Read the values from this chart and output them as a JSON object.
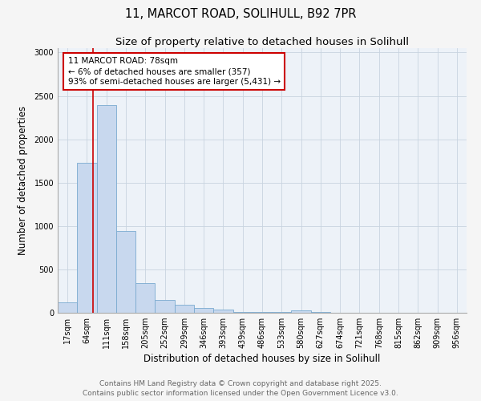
{
  "title_line1": "11, MARCOT ROAD, SOLIHULL, B92 7PR",
  "title_line2": "Size of property relative to detached houses in Solihull",
  "xlabel": "Distribution of detached houses by size in Solihull",
  "ylabel": "Number of detached properties",
  "categories": [
    "17sqm",
    "64sqm",
    "111sqm",
    "158sqm",
    "205sqm",
    "252sqm",
    "299sqm",
    "346sqm",
    "393sqm",
    "439sqm",
    "486sqm",
    "533sqm",
    "580sqm",
    "627sqm",
    "674sqm",
    "721sqm",
    "768sqm",
    "815sqm",
    "862sqm",
    "909sqm",
    "956sqm"
  ],
  "values": [
    120,
    1730,
    2390,
    940,
    345,
    150,
    90,
    55,
    35,
    10,
    5,
    5,
    28,
    5,
    1,
    1,
    1,
    1,
    1,
    1,
    1
  ],
  "bar_color": "#c8d8ee",
  "bar_edge_color": "#7aaad0",
  "bar_linewidth": 0.6,
  "grid_color": "#c8d4e0",
  "bg_color": "#edf2f8",
  "plot_bg_color": "#edf2f8",
  "fig_bg_color": "#f5f5f5",
  "red_line_x": 1.3,
  "annotation_text": "11 MARCOT ROAD: 78sqm\n← 6% of detached houses are smaller (357)\n93% of semi-detached houses are larger (5,431) →",
  "annotation_box_color": "#ffffff",
  "annotation_border_color": "#cc0000",
  "ylim": [
    0,
    3050
  ],
  "yticks": [
    0,
    500,
    1000,
    1500,
    2000,
    2500,
    3000
  ],
  "footer_line1": "Contains HM Land Registry data © Crown copyright and database right 2025.",
  "footer_line2": "Contains public sector information licensed under the Open Government Licence v3.0.",
  "title_fontsize": 10.5,
  "subtitle_fontsize": 9.5,
  "axis_label_fontsize": 8.5,
  "tick_fontsize": 7,
  "annotation_fontsize": 7.5,
  "footer_fontsize": 6.5
}
